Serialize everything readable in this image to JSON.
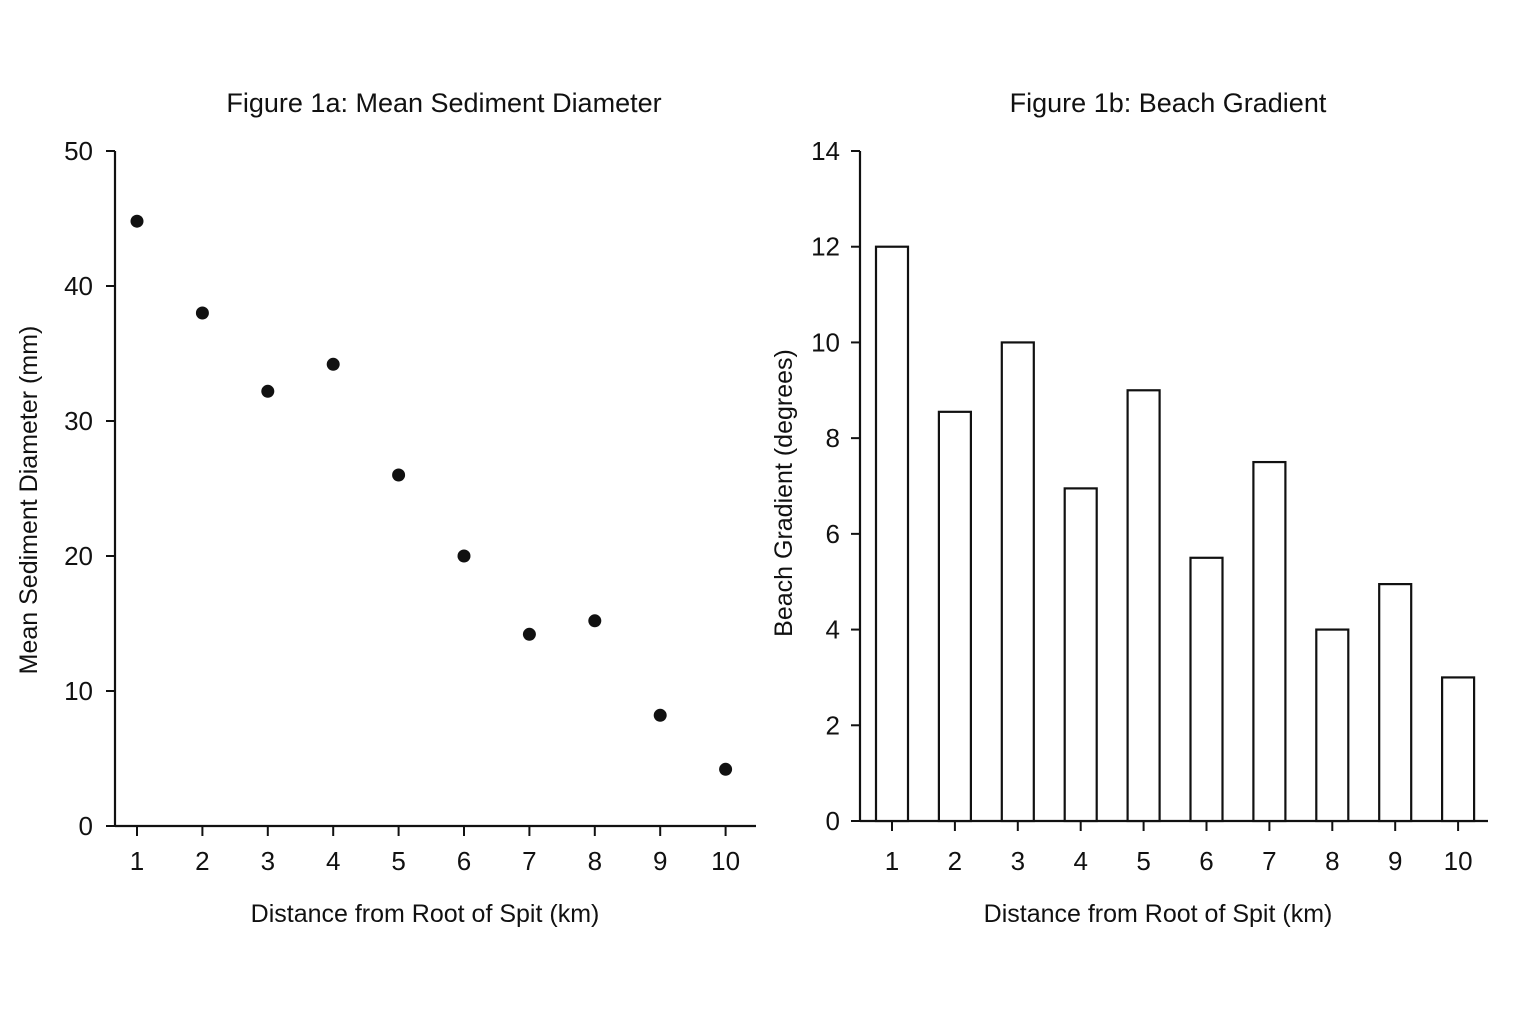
{
  "chart_data": [
    {
      "type": "scatter",
      "title": "Figure 1a: Mean Sediment Diameter",
      "xlabel": "Distance from Root of Spit (km)",
      "ylabel": "Mean Sediment Diameter (mm)",
      "x": [
        1,
        2,
        3,
        4,
        5,
        6,
        7,
        8,
        9,
        10
      ],
      "y": [
        44.8,
        38,
        32.2,
        34.2,
        26,
        20,
        14.2,
        15.2,
        8.2,
        4.2
      ],
      "x_ticks": [
        "1",
        "2",
        "3",
        "4",
        "5",
        "6",
        "7",
        "8",
        "9",
        "10"
      ],
      "y_ticks": [
        "0",
        "10",
        "20",
        "30",
        "40",
        "50"
      ],
      "ylim": [
        0,
        50
      ],
      "grid": false,
      "legend": false,
      "color": "#111111"
    },
    {
      "type": "bar",
      "title": "Figure 1b: Beach Gradient",
      "xlabel": "Distance from Root of Spit (km)",
      "ylabel": "Beach Gradient (degrees)",
      "categories": [
        "1",
        "2",
        "3",
        "4",
        "5",
        "6",
        "7",
        "8",
        "9",
        "10"
      ],
      "values": [
        12,
        8.55,
        10,
        6.95,
        9,
        5.5,
        7.5,
        4,
        4.95,
        3
      ],
      "y_ticks": [
        "0",
        "2",
        "4",
        "6",
        "8",
        "10",
        "12",
        "14"
      ],
      "ylim": [
        0,
        14
      ],
      "grid": false,
      "legend": false,
      "bar_fill": "#ffffff",
      "bar_stroke": "#111111"
    }
  ]
}
